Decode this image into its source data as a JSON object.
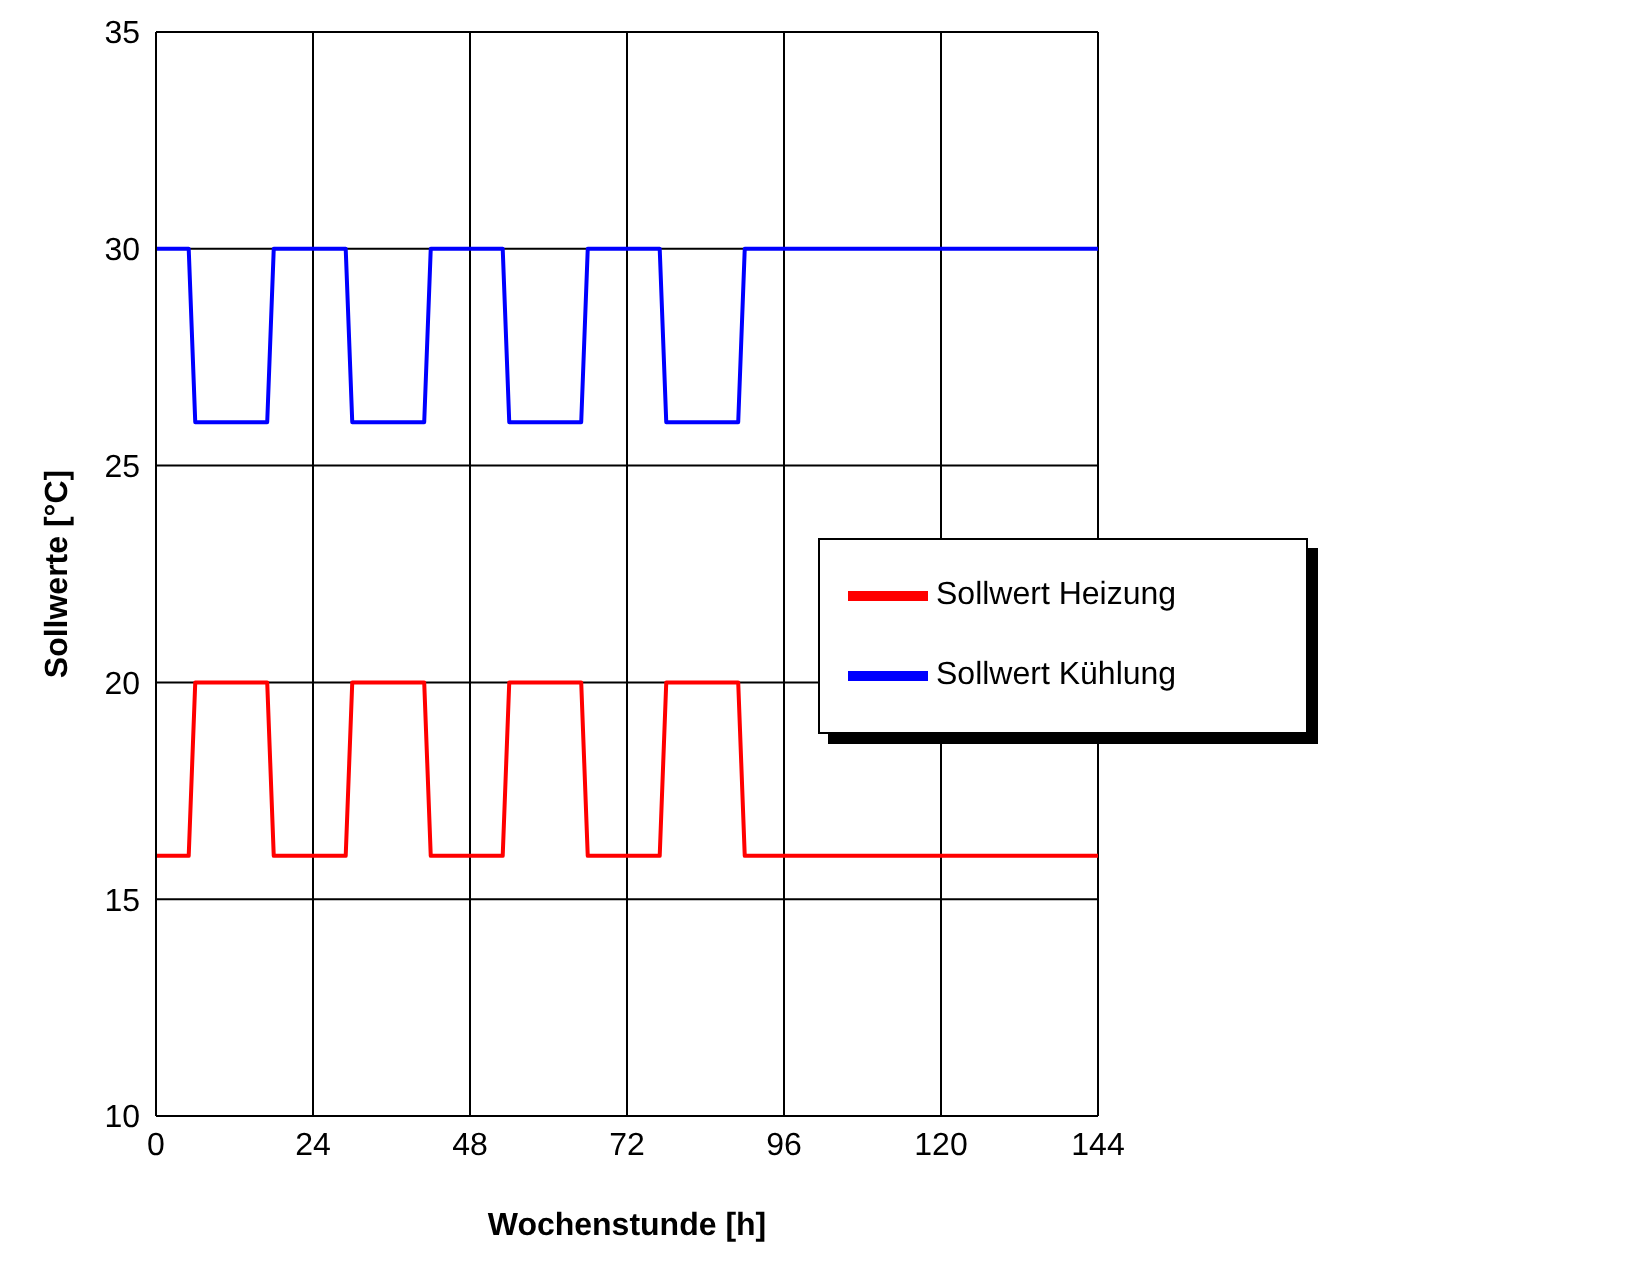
{
  "chart_data": {
    "type": "line",
    "xlabel": "Wochenstunde [h]",
    "ylabel": "Sollwerte [°C]",
    "xlim": [
      0,
      144
    ],
    "xticks": [
      0,
      24,
      48,
      72,
      96,
      120,
      144
    ],
    "ylim": [
      10,
      35
    ],
    "yticks": [
      10,
      15,
      20,
      25,
      30,
      35
    ],
    "grid": true,
    "legend": "right",
    "marker": "none",
    "line_style": "solid",
    "series": [
      {
        "name": "Sollwert Heizung",
        "color": "#ff0000",
        "x": [
          0,
          5,
          6,
          17,
          18,
          29,
          30,
          41,
          42,
          53,
          54,
          65,
          66,
          77,
          78,
          89,
          90,
          144
        ],
        "values": [
          16,
          16,
          20,
          20,
          16,
          16,
          20,
          20,
          16,
          16,
          20,
          20,
          16,
          16,
          20,
          20,
          16,
          16
        ]
      },
      {
        "name": "Sollwert Kühlung",
        "color": "#0000ff",
        "x": [
          0,
          5,
          6,
          17,
          18,
          29,
          30,
          41,
          42,
          53,
          54,
          65,
          66,
          77,
          78,
          89,
          90,
          144
        ],
        "values": [
          30,
          30,
          26,
          26,
          30,
          30,
          26,
          26,
          30,
          30,
          26,
          26,
          30,
          30,
          26,
          26,
          30,
          30
        ]
      }
    ]
  }
}
